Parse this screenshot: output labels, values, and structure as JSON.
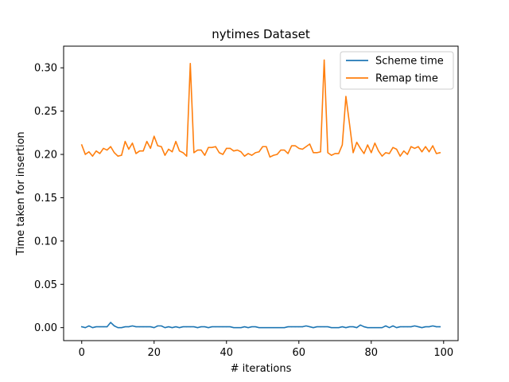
{
  "chart_data": {
    "type": "line",
    "title": "nytimes Dataset",
    "xlabel": "# iterations",
    "ylabel": "Time taken for insertion",
    "xlim": [
      -5,
      104
    ],
    "ylim": [
      -0.015,
      0.325
    ],
    "xticks": [
      0,
      20,
      40,
      60,
      80,
      100
    ],
    "yticks": [
      0.0,
      0.05,
      0.1,
      0.15,
      0.2,
      0.25,
      0.3
    ],
    "ytick_labels": [
      "0.00",
      "0.05",
      "0.10",
      "0.15",
      "0.20",
      "0.25",
      "0.30"
    ],
    "grid": false,
    "legend_position": "top-right",
    "x": [
      0,
      1,
      2,
      3,
      4,
      5,
      6,
      7,
      8,
      9,
      10,
      11,
      12,
      13,
      14,
      15,
      16,
      17,
      18,
      19,
      20,
      21,
      22,
      23,
      24,
      25,
      26,
      27,
      28,
      29,
      30,
      31,
      32,
      33,
      34,
      35,
      36,
      37,
      38,
      39,
      40,
      41,
      42,
      43,
      44,
      45,
      46,
      47,
      48,
      49,
      50,
      51,
      52,
      53,
      54,
      55,
      56,
      57,
      58,
      59,
      60,
      61,
      62,
      63,
      64,
      65,
      66,
      67,
      68,
      69,
      70,
      71,
      72,
      73,
      74,
      75,
      76,
      77,
      78,
      79,
      80,
      81,
      82,
      83,
      84,
      85,
      86,
      87,
      88,
      89,
      90,
      91,
      92,
      93,
      94,
      95,
      96,
      97,
      98,
      99
    ],
    "series": [
      {
        "name": "Scheme time",
        "color": "#1f77b4",
        "values": [
          0.001,
          0.0,
          0.002,
          0.0,
          0.001,
          0.001,
          0.001,
          0.001,
          0.006,
          0.002,
          0.0,
          0.0,
          0.001,
          0.001,
          0.002,
          0.001,
          0.001,
          0.001,
          0.001,
          0.001,
          0.0,
          0.002,
          0.002,
          0.0,
          0.001,
          0.0,
          0.001,
          0.0,
          0.001,
          0.001,
          0.001,
          0.001,
          0.0,
          0.001,
          0.001,
          0.0,
          0.001,
          0.001,
          0.001,
          0.001,
          0.001,
          0.001,
          0.0,
          0.0,
          0.0,
          0.001,
          0.0,
          0.001,
          0.001,
          0.0,
          0.0,
          0.0,
          0.0,
          0.0,
          0.0,
          0.0,
          0.0,
          0.001,
          0.001,
          0.001,
          0.001,
          0.001,
          0.002,
          0.001,
          0.0,
          0.001,
          0.001,
          0.001,
          0.001,
          0.0,
          0.0,
          0.0,
          0.001,
          0.0,
          0.001,
          0.001,
          0.0,
          0.003,
          0.001,
          0.0,
          0.0,
          0.0,
          0.0,
          0.0,
          0.002,
          0.0,
          0.002,
          0.0,
          0.001,
          0.001,
          0.001,
          0.001,
          0.002,
          0.001,
          0.0,
          0.001,
          0.001,
          0.002,
          0.001,
          0.001
        ]
      },
      {
        "name": "Remap time",
        "color": "#ff7f0e",
        "values": [
          0.211,
          0.2,
          0.203,
          0.198,
          0.204,
          0.201,
          0.207,
          0.205,
          0.209,
          0.202,
          0.198,
          0.199,
          0.215,
          0.206,
          0.213,
          0.201,
          0.204,
          0.204,
          0.215,
          0.207,
          0.221,
          0.21,
          0.209,
          0.199,
          0.206,
          0.203,
          0.215,
          0.204,
          0.202,
          0.198,
          0.305,
          0.202,
          0.205,
          0.205,
          0.199,
          0.208,
          0.208,
          0.209,
          0.202,
          0.2,
          0.207,
          0.207,
          0.204,
          0.205,
          0.203,
          0.198,
          0.201,
          0.199,
          0.202,
          0.203,
          0.209,
          0.209,
          0.197,
          0.199,
          0.2,
          0.205,
          0.205,
          0.201,
          0.21,
          0.21,
          0.207,
          0.206,
          0.209,
          0.212,
          0.202,
          0.202,
          0.203,
          0.309,
          0.202,
          0.199,
          0.201,
          0.201,
          0.211,
          0.267,
          0.235,
          0.202,
          0.214,
          0.207,
          0.201,
          0.211,
          0.202,
          0.213,
          0.204,
          0.198,
          0.202,
          0.201,
          0.208,
          0.206,
          0.198,
          0.204,
          0.2,
          0.209,
          0.207,
          0.209,
          0.203,
          0.209,
          0.203,
          0.21,
          0.201,
          0.202
        ]
      }
    ]
  }
}
